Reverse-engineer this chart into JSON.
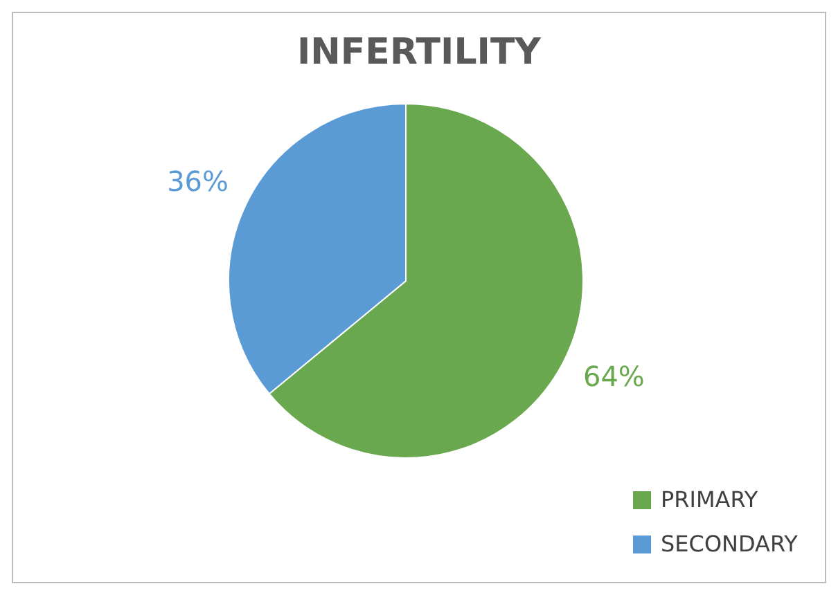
{
  "chart_data": {
    "type": "pie",
    "title": "INFERTILITY",
    "categories": [
      "PRIMARY",
      "SECONDARY"
    ],
    "values": [
      64,
      36
    ],
    "colors": [
      "#6aa84f",
      "#5b9bd5"
    ],
    "value_labels": [
      "64%",
      "36%"
    ],
    "legend": "bottom right"
  }
}
